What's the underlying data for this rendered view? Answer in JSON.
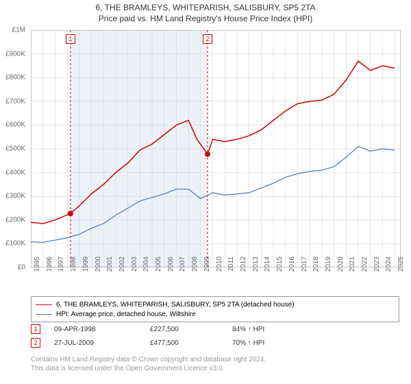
{
  "title": "6, THE BRAMLEYS, WHITEPARISH, SALISBURY, SP5 2TA",
  "subtitle": "Price paid vs. HM Land Registry's House Price Index (HPI)",
  "chart": {
    "type": "line",
    "background_color": "#ffffff",
    "grid_color": "#d0d0d0",
    "shaded_block_color": "#edf2f8",
    "title_fontsize": 12,
    "label_fontsize": 10,
    "label_color": "#666666",
    "ylim": [
      0,
      1000000
    ],
    "ytick_step": 100000,
    "y_labels": [
      "£0",
      "£100K",
      "£200K",
      "£300K",
      "£400K",
      "£500K",
      "£600K",
      "£700K",
      "£800K",
      "£900K",
      "£1M"
    ],
    "x_years": [
      1995,
      1996,
      1997,
      1998,
      1999,
      2000,
      2001,
      2002,
      2003,
      2004,
      2005,
      2006,
      2007,
      2008,
      2009,
      2010,
      2011,
      2012,
      2013,
      2014,
      2015,
      2016,
      2017,
      2018,
      2019,
      2020,
      2021,
      2022,
      2023,
      2024,
      2025
    ],
    "xlim": [
      1995,
      2025.5
    ],
    "series": [
      {
        "name": "6, THE BRAMLEYS, WHITEPARISH, SALISBURY, SP5 2TA (detached house)",
        "color": "#cc0000",
        "line_width": 1.5,
        "data": [
          [
            1995,
            190000
          ],
          [
            1996,
            185000
          ],
          [
            1997,
            200000
          ],
          [
            1998.27,
            227500
          ],
          [
            1999,
            260000
          ],
          [
            2000,
            310000
          ],
          [
            2001,
            350000
          ],
          [
            2002,
            400000
          ],
          [
            2003,
            440000
          ],
          [
            2004,
            495000
          ],
          [
            2005,
            520000
          ],
          [
            2006,
            560000
          ],
          [
            2007,
            600000
          ],
          [
            2008,
            620000
          ],
          [
            2008.7,
            540000
          ],
          [
            2009.57,
            477500
          ],
          [
            2010,
            540000
          ],
          [
            2011,
            530000
          ],
          [
            2012,
            540000
          ],
          [
            2013,
            555000
          ],
          [
            2014,
            580000
          ],
          [
            2015,
            620000
          ],
          [
            2016,
            660000
          ],
          [
            2017,
            690000
          ],
          [
            2018,
            700000
          ],
          [
            2019,
            705000
          ],
          [
            2020,
            730000
          ],
          [
            2021,
            790000
          ],
          [
            2022,
            870000
          ],
          [
            2023,
            830000
          ],
          [
            2024,
            850000
          ],
          [
            2025,
            840000
          ]
        ]
      },
      {
        "name": "HPI: Average price, detached house, Wiltshire",
        "color": "#4a74b8",
        "line_width": 1.2,
        "data": [
          [
            1995,
            108000
          ],
          [
            1996,
            106000
          ],
          [
            1997,
            115000
          ],
          [
            1998,
            125000
          ],
          [
            1999,
            140000
          ],
          [
            2000,
            165000
          ],
          [
            2001,
            185000
          ],
          [
            2002,
            220000
          ],
          [
            2003,
            250000
          ],
          [
            2004,
            280000
          ],
          [
            2005,
            295000
          ],
          [
            2006,
            310000
          ],
          [
            2007,
            330000
          ],
          [
            2008,
            330000
          ],
          [
            2009,
            290000
          ],
          [
            2010,
            315000
          ],
          [
            2011,
            305000
          ],
          [
            2012,
            310000
          ],
          [
            2013,
            315000
          ],
          [
            2014,
            335000
          ],
          [
            2015,
            355000
          ],
          [
            2016,
            380000
          ],
          [
            2017,
            395000
          ],
          [
            2018,
            405000
          ],
          [
            2019,
            410000
          ],
          [
            2020,
            425000
          ],
          [
            2021,
            465000
          ],
          [
            2022,
            510000
          ],
          [
            2023,
            490000
          ],
          [
            2024,
            500000
          ],
          [
            2025,
            495000
          ]
        ]
      }
    ],
    "markers": [
      {
        "n": "1",
        "year": 1998.27,
        "value": 227500
      },
      {
        "n": "2",
        "year": 2009.57,
        "value": 477500
      }
    ],
    "marker_color": "#cc0000",
    "marker_box_bg": "#ffffff",
    "shaded_blocks": [
      [
        1998.27,
        2009.57
      ]
    ]
  },
  "legend": {
    "items": [
      {
        "color": "#cc0000",
        "label": "6, THE BRAMLEYS, WHITEPARISH, SALISBURY, SP5 2TA (detached house)"
      },
      {
        "color": "#4a74b8",
        "label": "HPI: Average price, detached house, Wiltshire"
      }
    ]
  },
  "sales": [
    {
      "n": "1",
      "date": "09-APR-1998",
      "price": "£227,500",
      "pct": "84% ↑ HPI"
    },
    {
      "n": "2",
      "date": "27-JUL-2009",
      "price": "£477,500",
      "pct": "70% ↑ HPI"
    }
  ],
  "footer": {
    "line1": "Contains HM Land Registry data © Crown copyright and database right 2024.",
    "line2": "This data is licensed under the Open Government Licence v3.0."
  }
}
